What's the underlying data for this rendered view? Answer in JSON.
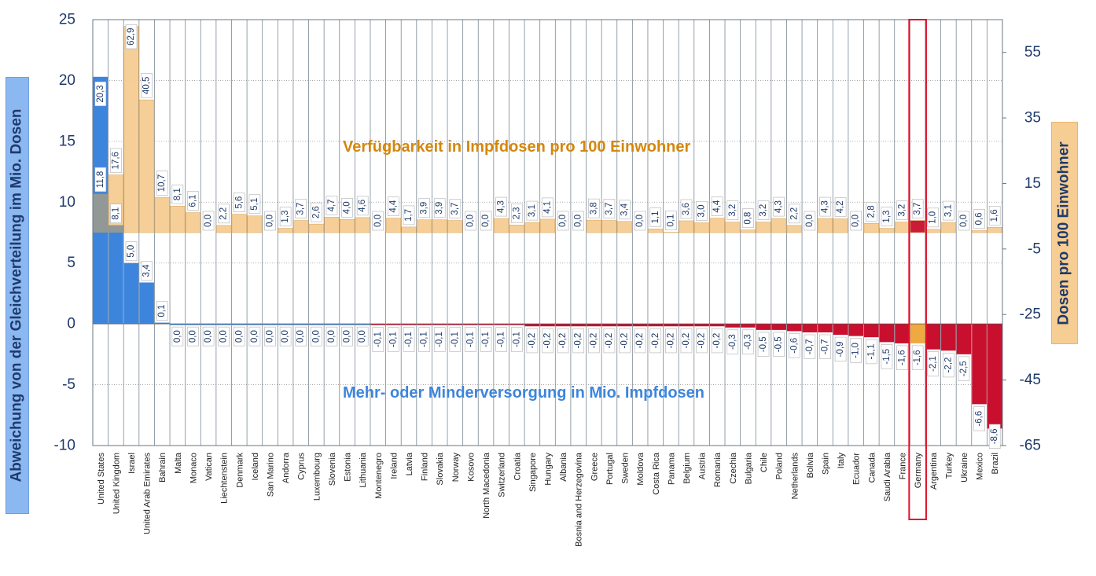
{
  "chart_data": {
    "type": "bar",
    "annotations": {
      "top": "Verfügbarkeit in Impfdosen pro 100 Einwohner",
      "bottom": "Mehr- oder Minderversorgung in Mio. Impfdosen"
    },
    "ylabel_left": "Abweichung von der Gleichverteilung im Mio. Dosen",
    "ylabel_right": "Dosen pro 100 Einwohner",
    "ylim_left": [
      -10,
      25
    ],
    "yticks_left": [
      "25",
      "20",
      "15",
      "10",
      "5",
      "0",
      "-5",
      "-10"
    ],
    "ylim_right": [
      -65,
      65
    ],
    "yticks_right": [
      "55",
      "35",
      "15",
      "-5",
      "-25",
      "-45",
      "-65"
    ],
    "categories": [
      "United States",
      "United Kingdom",
      "Israel",
      "United Arab Emirates",
      "Bahrain",
      "Malta",
      "Monaco",
      "Vatican",
      "Liechtenstein",
      "Denmark",
      "Iceland",
      "San Marino",
      "Andorra",
      "Cyprus",
      "Luxembourg",
      "Slovenia",
      "Estonia",
      "Lithuania",
      "Montenegro",
      "Ireland",
      "Latvia",
      "Finland",
      "Slovakia",
      "Norway",
      "Kosovo",
      "North Macedonia",
      "Switzerland",
      "Croatia",
      "Singapore",
      "Hungary",
      "Albania",
      "Bosnia and Herzegovina",
      "Greece",
      "Portugal",
      "Sweden",
      "Moldova",
      "Costa Rica",
      "Panama",
      "Belgium",
      "Austria",
      "Romania",
      "Czechia",
      "Bulgaria",
      "Chile",
      "Poland",
      "Netherlands",
      "Bolivia",
      "Spain",
      "Italy",
      "Ecuador",
      "Canada",
      "Saudi Arabia",
      "France",
      "Germany",
      "Argentina",
      "Turkey",
      "Ukraine",
      "Mexico",
      "Brazil"
    ],
    "series": [
      {
        "name": "Verfügbarkeit in Impfdosen pro 100 Einwohner",
        "axis": "right",
        "labels": [
          "11,8",
          "17,6",
          "62,9",
          "40,5",
          "10,7",
          "8,1",
          "6,1",
          "0,0",
          "2,2",
          "5,6",
          "5,1",
          "0,0",
          "1,3",
          "3,7",
          "2,6",
          "4,7",
          "4,0",
          "4,6",
          "0,0",
          "4,4",
          "1,7",
          "3,9",
          "3,9",
          "3,7",
          "0,0",
          "0,0",
          "4,3",
          "2,3",
          "3,1",
          "4,1",
          "0,0",
          "0,0",
          "3,8",
          "3,7",
          "3,4",
          "0,0",
          "1,1",
          "0,1",
          "3,6",
          "3,0",
          "4,4",
          "3,2",
          "0,8",
          "3,2",
          "4,3",
          "2,2",
          "0,0",
          "4,3",
          "4,2",
          "0,0",
          "2,8",
          "1,3",
          "3,2",
          "3,7",
          "1,0",
          "3,1",
          "0,0",
          "0,6",
          "1,6"
        ],
        "values": [
          11.8,
          17.6,
          62.9,
          40.5,
          10.7,
          8.1,
          6.1,
          0.0,
          2.2,
          5.6,
          5.1,
          0.0,
          1.3,
          3.7,
          2.6,
          4.7,
          4.0,
          4.6,
          0.0,
          4.4,
          1.7,
          3.9,
          3.9,
          3.7,
          0.0,
          0.0,
          4.3,
          2.3,
          3.1,
          4.1,
          0.0,
          0.0,
          3.8,
          3.7,
          3.4,
          0.0,
          1.1,
          0.1,
          3.6,
          3.0,
          4.4,
          3.2,
          0.8,
          3.2,
          4.3,
          2.2,
          0.0,
          4.3,
          4.2,
          0.0,
          2.8,
          1.3,
          3.2,
          3.7,
          1.0,
          3.1,
          0.0,
          0.6,
          1.6
        ]
      },
      {
        "name": "Mehr- oder Minderversorgung in Mio. Impfdosen",
        "axis": "left",
        "labels": [
          "20,3",
          "8,1",
          "5,0",
          "3,4",
          "0,1",
          "0,0",
          "0,0",
          "0,0",
          "0,0",
          "0,0",
          "0,0",
          "0,0",
          "0,0",
          "0,0",
          "0,0",
          "0,0",
          "0,0",
          "0,0",
          "-0,1",
          "-0,1",
          "-0,1",
          "-0,1",
          "-0,1",
          "-0,1",
          "-0,1",
          "-0,1",
          "-0,1",
          "-0,1",
          "-0,2",
          "-0,2",
          "-0,2",
          "-0,2",
          "-0,2",
          "-0,2",
          "-0,2",
          "-0,2",
          "-0,2",
          "-0,2",
          "-0,2",
          "-0,2",
          "-0,2",
          "-0,3",
          "-0,3",
          "-0,5",
          "-0,5",
          "-0,6",
          "-0,7",
          "-0,7",
          "-0,9",
          "-1,0",
          "-1,1",
          "-1,5",
          "-1,6",
          "-1,6",
          "-2,1",
          "-2,2",
          "-2,5",
          "-6,6",
          "-8,6"
        ],
        "values": [
          20.3,
          8.1,
          5.0,
          3.4,
          0.1,
          0.0,
          0.0,
          0.0,
          0.0,
          0.0,
          0.0,
          0.0,
          0.0,
          0.0,
          0.0,
          0.0,
          0.0,
          0.0,
          -0.1,
          -0.1,
          -0.1,
          -0.1,
          -0.1,
          -0.1,
          -0.1,
          -0.1,
          -0.1,
          -0.1,
          -0.2,
          -0.2,
          -0.2,
          -0.2,
          -0.2,
          -0.2,
          -0.2,
          -0.2,
          -0.2,
          -0.2,
          -0.2,
          -0.2,
          -0.2,
          -0.3,
          -0.3,
          -0.5,
          -0.5,
          -0.6,
          -0.7,
          -0.7,
          -0.9,
          -1.0,
          -1.1,
          -1.5,
          -1.6,
          -1.6,
          -2.1,
          -2.2,
          -2.5,
          -6.6,
          -8.6
        ]
      }
    ],
    "highlight": "Germany",
    "grid": true,
    "colors": {
      "availability": "#f6cd93",
      "availability_highlight": "#c8102e",
      "surplus": "#3d85dc",
      "deficit": "#c8102e",
      "deficit_highlight": "#f0a840",
      "overlap": "#9a9a8e",
      "highlight_box": "#e0102a",
      "left_axis_title_bg": "#8cb8f2",
      "right_axis_title_bg": "#f6cd93",
      "annot_top": "#d4870e",
      "annot_bottom": "#3d85dc",
      "axis_text": "#1f3a6a"
    }
  }
}
